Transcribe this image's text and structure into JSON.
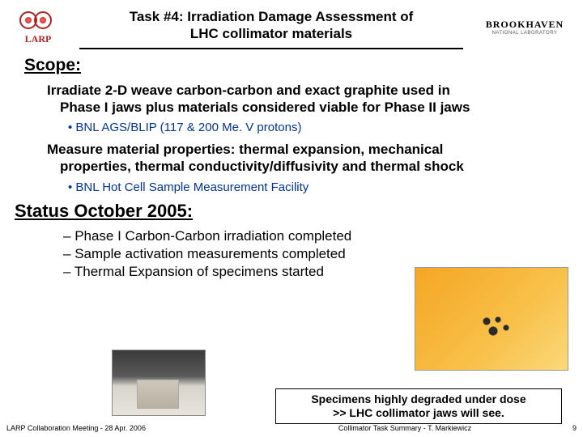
{
  "header": {
    "larp_label": "LARP",
    "title_line1": "Task #4: Irradiation Damage Assessment of",
    "title_line2": "LHC collimator materials",
    "bnl_main": "BROOKHAVEN",
    "bnl_sub": "NATIONAL LABORATORY"
  },
  "scope": {
    "heading": "Scope:",
    "item1_l1": "Irradiate 2-D weave carbon-carbon and exact graphite used in",
    "item1_l2": "Phase I jaws plus materials considered viable for Phase II jaws",
    "sub1": "BNL AGS/BLIP (117 & 200 Me. V protons)",
    "item2_l1": "Measure material properties: thermal expansion, mechanical",
    "item2_l2": "properties, thermal conductivity/diffusivity and thermal shock",
    "sub2": "BNL Hot Cell Sample Measurement Facility"
  },
  "status": {
    "heading": "Status October 2005:",
    "d1": "Phase I Carbon-Carbon irradiation completed",
    "d2": "Sample activation measurements completed",
    "d3": "Thermal Expansion of specimens started"
  },
  "caption": {
    "l1": "Specimens highly degraded under dose",
    "l2": ">> LHC collimator jaws will see."
  },
  "footer": {
    "left": "LARP Collaboration Meeting  -  28 Apr. 2006",
    "mid": "Collimator Task Summary  -  T. Markiewicz",
    "page": "9"
  },
  "colors": {
    "blue": "#003399",
    "larp_red": "#b22222",
    "bg": "#ffffff"
  }
}
